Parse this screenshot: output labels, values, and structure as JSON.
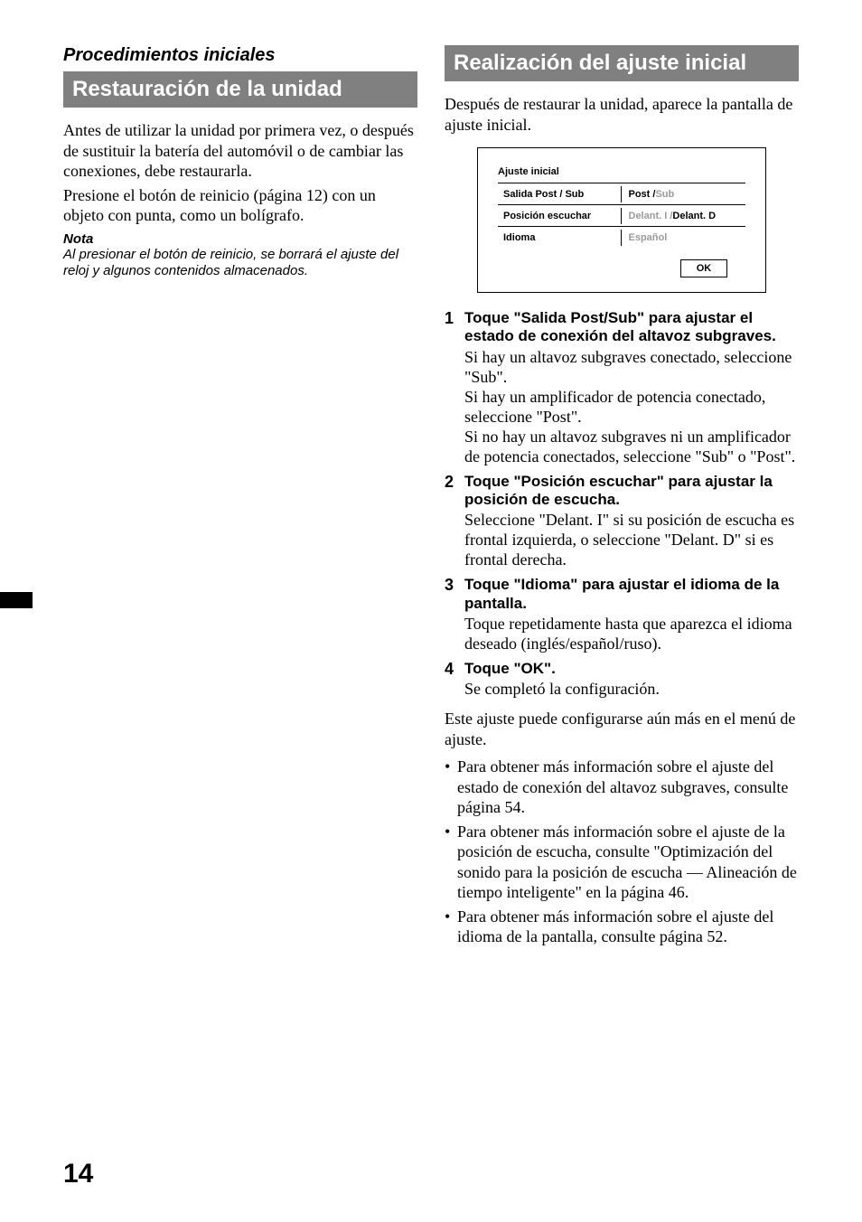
{
  "pageNumber": "14",
  "left": {
    "subhead": "Procedimientos iniciales",
    "headline": "Restauración de la unidad",
    "para1": "Antes de utilizar la unidad por primera vez, o después de sustituir la batería del automóvil o de cambiar las conexiones, debe restaurarla.",
    "para2": "Presione el botón de reinicio (página 12) con un objeto con punta, como un bolígrafo.",
    "noteHead": "Nota",
    "noteBody": "Al presionar el botón de reinicio, se borrará el ajuste del reloj y algunos contenidos almacenados."
  },
  "right": {
    "headline": "Realización del ajuste inicial",
    "intro": "Después de restaurar la unidad, aparece la pantalla de ajuste inicial.",
    "screen": {
      "title": "Ajuste inicial",
      "rows": [
        {
          "label": "Salida Post / Sub",
          "valueDark": "Post / ",
          "valueGray": "Sub"
        },
        {
          "label": "Posición escuchar",
          "valueGray1": "Delant. I / ",
          "valueDark": "Delant. D"
        },
        {
          "label": "Idioma",
          "valueGray": "Español"
        }
      ],
      "ok": "OK"
    },
    "steps": [
      {
        "num": "1",
        "title": "Toque \"Salida Post/Sub\" para ajustar el estado de conexión del altavoz subgraves.",
        "text": "Si hay un altavoz subgraves conectado, seleccione \"Sub\".\nSi hay un amplificador de potencia conectado, seleccione \"Post\".\nSi no hay un altavoz subgraves ni un amplificador de potencia conectados, seleccione \"Sub\" o \"Post\"."
      },
      {
        "num": "2",
        "title": "Toque \"Posición escuchar\" para ajustar la posición de escucha.",
        "text": "Seleccione \"Delant. I\" si su posición de escucha es frontal izquierda, o seleccione \"Delant. D\" si es frontal derecha."
      },
      {
        "num": "3",
        "title": "Toque \"Idioma\" para ajustar el idioma de la pantalla.",
        "text": "Toque repetidamente hasta que aparezca el idioma deseado (inglés/español/ruso)."
      },
      {
        "num": "4",
        "title": "Toque \"OK\".",
        "text": "Se completó la configuración."
      }
    ],
    "afterSteps": "Este ajuste puede configurarse aún más en el menú de ajuste.",
    "bullets": [
      "Para obtener más información sobre el ajuste del estado de conexión del altavoz subgraves, consulte página 54.",
      "Para obtener más información sobre el ajuste de la posición de escucha, consulte \"Optimización del sonido para la posición de escucha — Alineación de tiempo inteligente\" en la página 46.",
      "Para obtener más información sobre el ajuste del idioma de la pantalla, consulte página 52."
    ]
  }
}
